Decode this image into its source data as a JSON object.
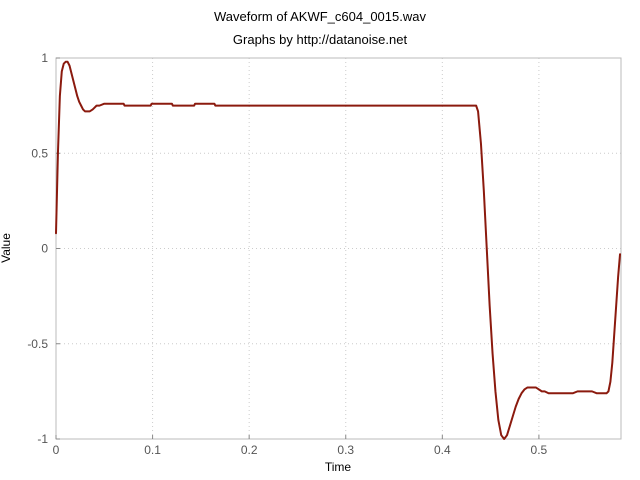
{
  "chart_data": {
    "type": "line",
    "title": "Waveform of AKWF_c604_0015.wav",
    "subtitle": "Graphs by http://datanoise.net",
    "xlabel": "Time",
    "ylabel": "Value",
    "xlim": [
      0,
      0.585
    ],
    "ylim": [
      -1,
      1
    ],
    "x_ticks": [
      0,
      0.1,
      0.2,
      0.3,
      0.4,
      0.5
    ],
    "x_tick_labels": [
      "0",
      "0.1",
      "0.2",
      "0.3",
      "0.4",
      "0.5"
    ],
    "y_ticks": [
      1,
      0.5,
      0,
      -0.5,
      -1
    ],
    "y_tick_labels": [
      "1",
      "0.5",
      "0",
      "-0.5",
      "-1"
    ],
    "grid": true,
    "line_color": "#8b1a0e",
    "series": [
      {
        "x": [
          0,
          0.002,
          0.004,
          0.006,
          0.008,
          0.01,
          0.012,
          0.014,
          0.016,
          0.018,
          0.02,
          0.022,
          0.024,
          0.026,
          0.028,
          0.03,
          0.032,
          0.035,
          0.038,
          0.04,
          0.042,
          0.045,
          0.05,
          0.06,
          0.07,
          0.071,
          0.09,
          0.098,
          0.099,
          0.118,
          0.12,
          0.121,
          0.14,
          0.143,
          0.144,
          0.16,
          0.164,
          0.165,
          0.2,
          0.25,
          0.3,
          0.35,
          0.4,
          0.435,
          0.437,
          0.44,
          0.443,
          0.446,
          0.449,
          0.452,
          0.455,
          0.458,
          0.461,
          0.464,
          0.467,
          0.47,
          0.473,
          0.476,
          0.479,
          0.482,
          0.485,
          0.488,
          0.491,
          0.494,
          0.497,
          0.5,
          0.503,
          0.506,
          0.51,
          0.515,
          0.52,
          0.525,
          0.53,
          0.535,
          0.54,
          0.545,
          0.55,
          0.555,
          0.56,
          0.565,
          0.57,
          0.572,
          0.574,
          0.576,
          0.578,
          0.58,
          0.582,
          0.584
        ],
        "y": [
          0.08,
          0.5,
          0.8,
          0.93,
          0.97,
          0.98,
          0.98,
          0.96,
          0.92,
          0.88,
          0.84,
          0.8,
          0.77,
          0.75,
          0.73,
          0.72,
          0.72,
          0.72,
          0.73,
          0.74,
          0.75,
          0.75,
          0.76,
          0.76,
          0.76,
          0.75,
          0.75,
          0.75,
          0.76,
          0.76,
          0.76,
          0.75,
          0.75,
          0.75,
          0.76,
          0.76,
          0.76,
          0.75,
          0.75,
          0.75,
          0.75,
          0.75,
          0.75,
          0.75,
          0.72,
          0.55,
          0.3,
          0.0,
          -0.3,
          -0.55,
          -0.75,
          -0.9,
          -0.98,
          -1.0,
          -0.98,
          -0.93,
          -0.88,
          -0.83,
          -0.79,
          -0.76,
          -0.74,
          -0.73,
          -0.73,
          -0.73,
          -0.73,
          -0.74,
          -0.75,
          -0.75,
          -0.76,
          -0.76,
          -0.76,
          -0.76,
          -0.76,
          -0.76,
          -0.75,
          -0.75,
          -0.75,
          -0.75,
          -0.76,
          -0.76,
          -0.76,
          -0.75,
          -0.7,
          -0.6,
          -0.45,
          -0.3,
          -0.15,
          -0.03
        ]
      }
    ]
  }
}
